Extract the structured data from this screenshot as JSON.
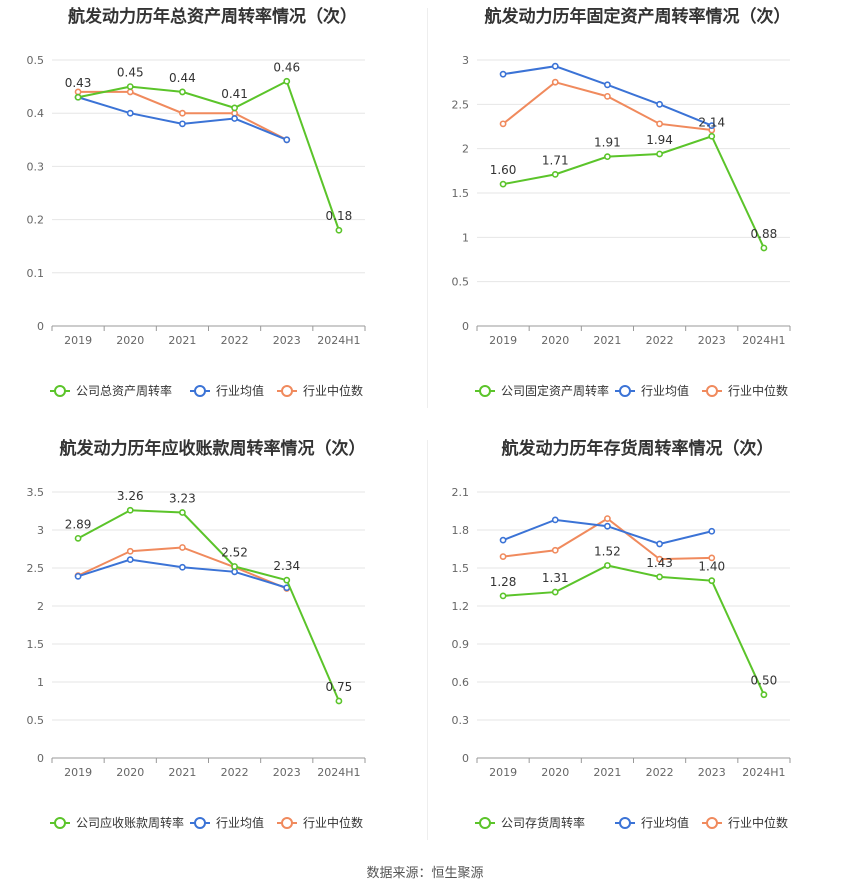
{
  "colors": {
    "company": "#5bc42a",
    "avg": "#3b73d6",
    "median": "#f08a5d"
  },
  "source": "数据来源：恒生聚源",
  "chart_data": [
    {
      "type": "line",
      "title": "航发动力历年总资产周转率情况（次）",
      "categories": [
        "2019",
        "2020",
        "2021",
        "2022",
        "2023",
        "2024H1"
      ],
      "yticks": [
        "0",
        "0.1",
        "0.2",
        "0.3",
        "0.4",
        "0.5"
      ],
      "ylim": [
        0,
        0.5
      ],
      "series": [
        {
          "name": "公司总资产周转率",
          "values": [
            0.43,
            0.45,
            0.44,
            0.41,
            0.46,
            0.18
          ],
          "labels": [
            "0.43",
            "0.45",
            "0.44",
            "0.41",
            "0.46",
            "0.18"
          ]
        },
        {
          "name": "行业均值",
          "values": [
            0.43,
            0.4,
            0.38,
            0.39,
            0.35,
            null
          ]
        },
        {
          "name": "行业中位数",
          "values": [
            0.44,
            0.44,
            0.4,
            0.4,
            0.35,
            null
          ]
        }
      ]
    },
    {
      "type": "line",
      "title": "航发动力历年固定资产周转率情况（次）",
      "categories": [
        "2019",
        "2020",
        "2021",
        "2022",
        "2023",
        "2024H1"
      ],
      "yticks": [
        "0",
        "0.5",
        "1",
        "1.5",
        "2",
        "2.5",
        "3"
      ],
      "ylim": [
        0,
        3
      ],
      "series": [
        {
          "name": "公司固定资产周转率",
          "values": [
            1.6,
            1.71,
            1.91,
            1.94,
            2.14,
            0.88
          ],
          "labels": [
            "1.60",
            "1.71",
            "1.91",
            "1.94",
            "2.14",
            "0.88"
          ]
        },
        {
          "name": "行业均值",
          "values": [
            2.84,
            2.93,
            2.72,
            2.5,
            2.26,
            null
          ]
        },
        {
          "name": "行业中位数",
          "values": [
            2.28,
            2.75,
            2.59,
            2.28,
            2.21,
            null
          ]
        }
      ]
    },
    {
      "type": "line",
      "title": "航发动力历年应收账款周转率情况（次）",
      "categories": [
        "2019",
        "2020",
        "2021",
        "2022",
        "2023",
        "2024H1"
      ],
      "yticks": [
        "0",
        "0.5",
        "1",
        "1.5",
        "2",
        "2.5",
        "3",
        "3.5"
      ],
      "ylim": [
        0,
        3.5
      ],
      "series": [
        {
          "name": "公司应收账款周转率",
          "values": [
            2.89,
            3.26,
            3.23,
            2.52,
            2.34,
            0.75
          ],
          "labels": [
            "2.89",
            "3.26",
            "3.23",
            "2.52",
            "2.34",
            "0.75"
          ]
        },
        {
          "name": "行业均值",
          "values": [
            2.39,
            2.61,
            2.51,
            2.45,
            2.24,
            null
          ]
        },
        {
          "name": "行业中位数",
          "values": [
            2.4,
            2.72,
            2.77,
            2.51,
            2.23,
            null
          ]
        }
      ]
    },
    {
      "type": "line",
      "title": "航发动力历年存货周转率情况（次）",
      "categories": [
        "2019",
        "2020",
        "2021",
        "2022",
        "2023",
        "2024H1"
      ],
      "yticks": [
        "0",
        "0.3",
        "0.6",
        "0.9",
        "1.2",
        "1.5",
        "1.8",
        "2.1"
      ],
      "ylim": [
        0,
        2.1
      ],
      "series": [
        {
          "name": "公司存货周转率",
          "values": [
            1.28,
            1.31,
            1.52,
            1.43,
            1.4,
            0.5
          ],
          "labels": [
            "1.28",
            "1.31",
            "1.52",
            "1.43",
            "1.40",
            "0.50"
          ]
        },
        {
          "name": "行业均值",
          "values": [
            1.72,
            1.88,
            1.83,
            1.69,
            1.79,
            null
          ]
        },
        {
          "name": "行业中位数",
          "values": [
            1.59,
            1.64,
            1.89,
            1.57,
            1.58,
            null
          ]
        }
      ]
    }
  ]
}
